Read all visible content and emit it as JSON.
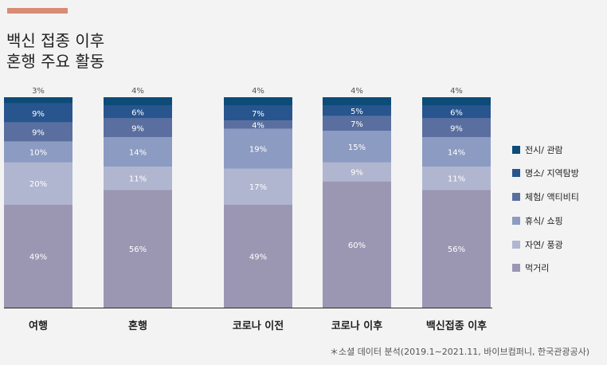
{
  "title": {
    "line1": "백신 접종 이후",
    "line2": "혼행 주요 활동"
  },
  "accent_color": "#d98c74",
  "source": "＊소셜 데이터 분석(2019.1∼2021.11, 바이브컴퍼니, 한국관광공사)",
  "legend_order": [
    "전시/ 관람",
    "명소/ 지역탐방",
    "체험/ 액티비티",
    "휴식/ 쇼핑",
    "자연/ 풍광",
    "먹거리"
  ],
  "chart_data": {
    "type": "bar",
    "stacked": true,
    "categories": [
      "여행",
      "혼행",
      "코로나 이전",
      "코로나 이후",
      "백신접종 이후"
    ],
    "series": [
      {
        "name": "먹거리",
        "color": "#9b97b3",
        "values": [
          49,
          56,
          49,
          60,
          56
        ]
      },
      {
        "name": "자연/ 풍광",
        "color": "#b0b6d0",
        "values": [
          20,
          11,
          17,
          9,
          11
        ]
      },
      {
        "name": "휴식/ 쇼핑",
        "color": "#8c9bc1",
        "values": [
          10,
          14,
          19,
          15,
          14
        ]
      },
      {
        "name": "체험/ 액티비티",
        "color": "#5a6f9f",
        "values": [
          9,
          9,
          4,
          7,
          9
        ]
      },
      {
        "name": "명소/ 지역탐방",
        "color": "#28558e",
        "values": [
          9,
          6,
          7,
          5,
          6
        ]
      },
      {
        "name": "전시/ 관람",
        "color": "#0d4b78",
        "values": [
          3,
          4,
          4,
          4,
          4
        ]
      }
    ],
    "value_suffix": "%",
    "ylim": [
      0,
      100
    ]
  }
}
